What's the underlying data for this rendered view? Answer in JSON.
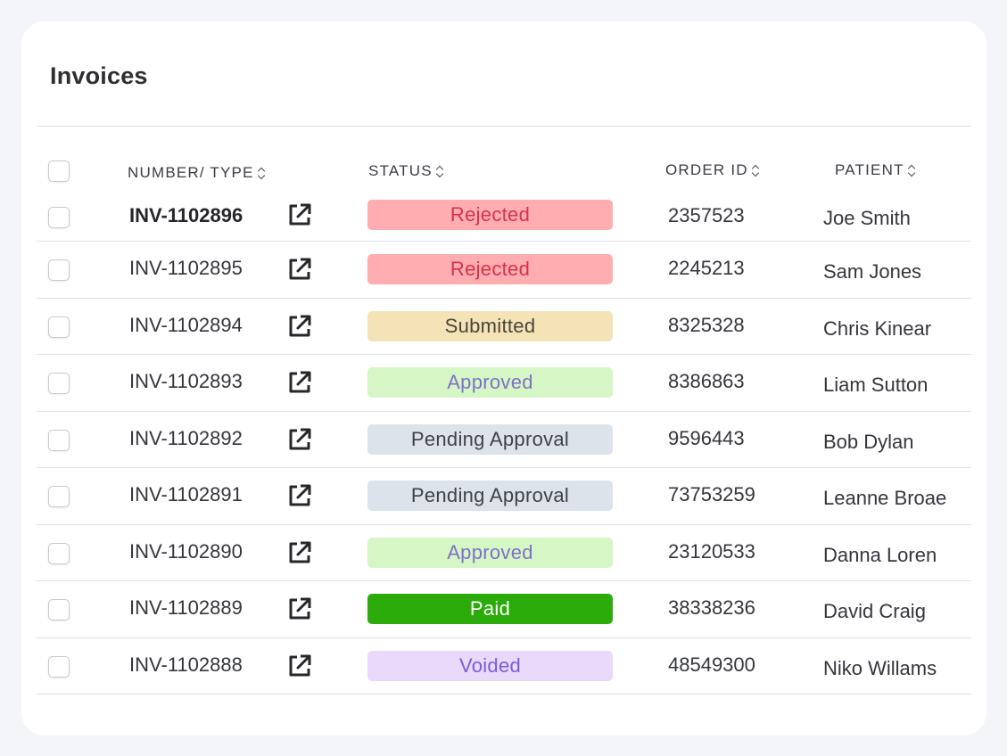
{
  "card": {
    "title": "Invoices"
  },
  "table": {
    "headers": {
      "number_type": "NUMBER/ TYPE",
      "status": "STATUS",
      "order_id": "ORDER ID",
      "patient": "PATIENT"
    },
    "rows": [
      {
        "number": "INV-1102896",
        "status": "Rejected",
        "order_id": "2357523",
        "patient": "Joe Smith"
      },
      {
        "number": "INV-1102895",
        "status": "Rejected",
        "order_id": "2245213",
        "patient": "Sam Jones"
      },
      {
        "number": "INV-1102894",
        "status": "Submitted",
        "order_id": "8325328",
        "patient": "Chris Kinear"
      },
      {
        "number": "INV-1102893",
        "status": "Approved",
        "order_id": "8386863",
        "patient": "Liam Sutton"
      },
      {
        "number": "INV-1102892",
        "status": "Pending Approval",
        "order_id": "9596443",
        "patient": "Bob Dylan"
      },
      {
        "number": "INV-1102891",
        "status": "Pending Approval",
        "order_id": "73753259",
        "patient": "Leanne Broae"
      },
      {
        "number": "INV-1102890",
        "status": "Approved",
        "order_id": "23120533",
        "patient": "Danna Loren"
      },
      {
        "number": "INV-1102889",
        "status": "Paid",
        "order_id": "38338236",
        "patient": "David Craig"
      },
      {
        "number": "INV-1102888",
        "status": "Voided",
        "order_id": "48549300",
        "patient": "Niko Willams"
      }
    ]
  },
  "status_colors": {
    "Rejected": {
      "bg": "#ffadb1",
      "fg": "#d8314a"
    },
    "Submitted": {
      "bg": "#f5e3b8",
      "fg": "#4a4438"
    },
    "Approved": {
      "bg": "#d7f6c6",
      "fg": "#7b72c9"
    },
    "Pending Approval": {
      "bg": "#dde3ea",
      "fg": "#3f4148"
    },
    "Paid": {
      "bg": "#2aab09",
      "fg": "#ffffff"
    },
    "Voided": {
      "bg": "#ead9fb",
      "fg": "#7b5dd6"
    }
  },
  "icons": {
    "row_link": "external-link-icon",
    "sort": "sort-icon"
  }
}
